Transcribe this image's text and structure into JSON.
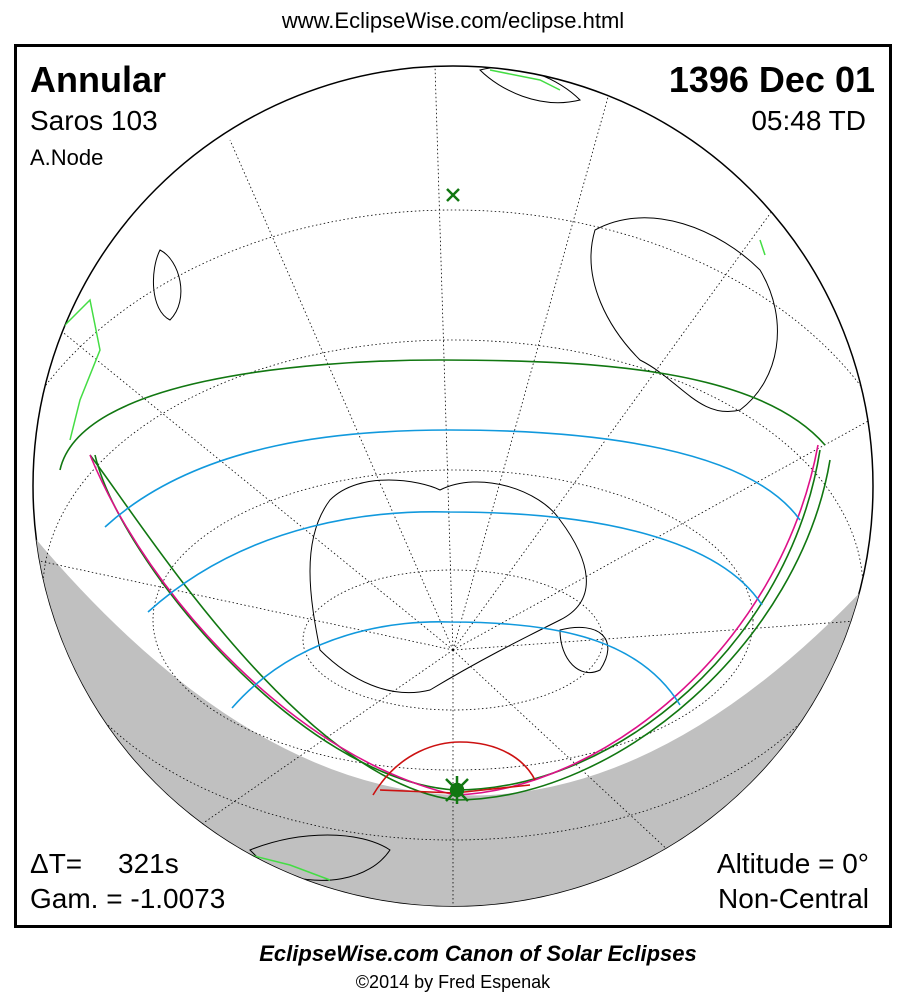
{
  "header": {
    "url": "www.EclipseWise.com/eclipse.html"
  },
  "eclipse": {
    "type": "Annular",
    "saros": "Saros 103",
    "node": "A.Node",
    "date": "1396 Dec 01",
    "time": "05:48 TD",
    "delta_t_label": "ΔT=",
    "delta_t": "321s",
    "gamma": "Gam. = -1.0073",
    "altitude": "Altitude = 0°",
    "central": "Non-Central"
  },
  "footer": {
    "title": "EclipseWise.com Canon of Solar Eclipses",
    "credit": "©2014 by Fred Espenak"
  }
}
